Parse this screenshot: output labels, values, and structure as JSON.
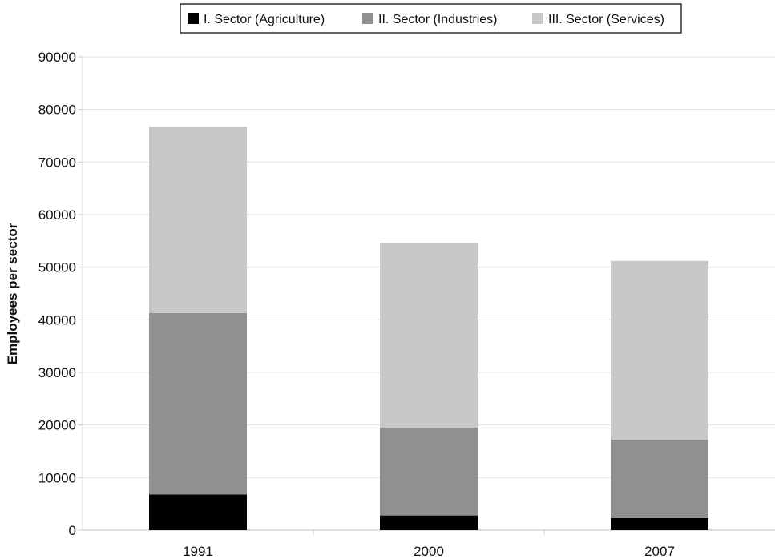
{
  "chart_data": {
    "type": "bar",
    "stacked": true,
    "categories": [
      "1991",
      "2000",
      "2007"
    ],
    "series": [
      {
        "name": "I. Sector (Agriculture)",
        "color": "#000000",
        "values": [
          6800,
          2800,
          2300
        ]
      },
      {
        "name": "II. Sector (Industries)",
        "color": "#909090",
        "values": [
          34500,
          16700,
          14900
        ]
      },
      {
        "name": "III. Sector (Services)",
        "color": "#c8c8c8",
        "values": [
          35400,
          35100,
          34000
        ]
      }
    ],
    "ylabel": "Employees per sector",
    "xlabel": "",
    "ylim": [
      0,
      90000
    ],
    "yticks": [
      "0",
      "10000",
      "20000",
      "30000",
      "40000",
      "50000",
      "60000",
      "70000",
      "80000",
      "90000"
    ],
    "grid": true,
    "legend_position": "top"
  }
}
